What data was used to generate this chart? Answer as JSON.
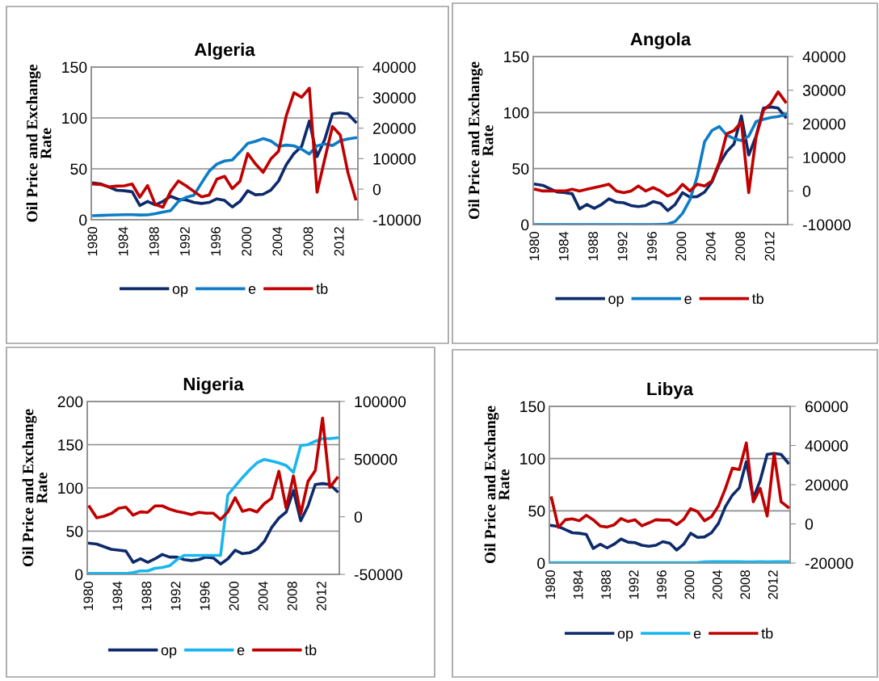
{
  "chart_data": [
    {
      "type": "line",
      "title": "Algeria",
      "ylabel": "Oil Price and Exchange Rate",
      "categories": [
        "1980",
        null,
        null,
        null,
        "1984",
        null,
        null,
        null,
        "1988",
        null,
        null,
        null,
        "1992",
        null,
        null,
        null,
        "1996",
        null,
        null,
        null,
        "2000",
        null,
        null,
        null,
        "2004",
        null,
        null,
        null,
        "2008",
        null,
        null,
        null,
        "2012",
        null,
        null
      ],
      "series": [
        {
          "name": "op",
          "color": "#0d2a6b",
          "values": [
            36,
            35,
            32,
            29,
            28.5,
            27.5,
            14,
            18,
            14.5,
            18,
            23,
            20,
            19.5,
            17,
            16,
            17,
            20.5,
            19,
            12.5,
            18,
            28.5,
            24.5,
            25,
            29,
            38,
            54,
            65,
            72,
            97,
            62,
            79,
            104,
            105,
            104,
            96
          ]
        },
        {
          "name": "e",
          "color": "#0e7cc6",
          "values": [
            4,
            4.3,
            4.6,
            4.8,
            5,
            5,
            4.7,
            4.8,
            6,
            7.6,
            9,
            18,
            22,
            24,
            36,
            47.7,
            54.7,
            57.7,
            58.7,
            66.6,
            75,
            77,
            79.7,
            77.4,
            72,
            73.3,
            72.6,
            69.3,
            64.6,
            72.6,
            74.4,
            72.9,
            77.5,
            79.4,
            80.6
          ]
        },
        {
          "name": "tb",
          "color": "#c00000",
          "axis": "y2",
          "values": [
            1700,
            1500,
            800,
            1000,
            1100,
            1700,
            -2600,
            1200,
            -5000,
            -5900,
            -700,
            2700,
            1100,
            -700,
            -2500,
            -1900,
            3300,
            4200,
            200,
            2600,
            11700,
            8300,
            5500,
            9900,
            12400,
            24000,
            31600,
            30100,
            33100,
            -1000,
            9900,
            20500,
            17800,
            5500,
            -3200
          ]
        }
      ],
      "ylim": [
        0,
        150
      ],
      "yticks": [
        0,
        50,
        100,
        150
      ],
      "y2lim": [
        -10000,
        40000
      ],
      "y2ticks": [
        -10000,
        0,
        10000,
        20000,
        30000,
        40000
      ],
      "grid": "y",
      "legend": "bottom"
    },
    {
      "type": "line",
      "title": "Angola",
      "ylabel": "Oil Price and Exchange Rate",
      "categories": [
        "1980",
        null,
        null,
        null,
        "1984",
        null,
        null,
        null,
        "1988",
        null,
        null,
        null,
        "1992",
        null,
        null,
        null,
        "1996",
        null,
        null,
        null,
        "2000",
        null,
        null,
        null,
        "2004",
        null,
        null,
        null,
        "2008",
        null,
        null,
        null,
        "2012",
        null,
        null
      ],
      "series": [
        {
          "name": "op",
          "color": "#0d2a6b",
          "values": [
            36,
            35,
            32,
            29,
            28.5,
            27.5,
            14,
            18,
            14.5,
            18,
            23,
            20,
            19.5,
            17,
            16,
            17,
            20.5,
            19,
            12.5,
            18,
            28.5,
            24.5,
            25,
            29,
            38,
            54,
            65,
            72,
            97,
            62,
            79,
            104,
            105,
            104,
            96
          ]
        },
        {
          "name": "e",
          "color": "#0e7cc6",
          "values": [
            0,
            0,
            0,
            0,
            0,
            0,
            0,
            0,
            0,
            0,
            0,
            0,
            0,
            0,
            0,
            0,
            0,
            0.2,
            0.5,
            2.8,
            10,
            22,
            43,
            74,
            84,
            87.5,
            80,
            76.7,
            75,
            79,
            91.9,
            93.9,
            95.5,
            96.5,
            98.3
          ]
        },
        {
          "name": "tb",
          "color": "#c00000",
          "axis": "y2",
          "values": [
            500,
            0,
            0,
            0,
            0,
            500,
            0,
            500,
            1000,
            1500,
            2000,
            0,
            -500,
            0,
            1500,
            0,
            1000,
            0,
            -1500,
            -500,
            2000,
            0,
            2000,
            1500,
            3000,
            8500,
            17000,
            18000,
            20500,
            -500,
            16000,
            24000,
            26000,
            29500,
            26500
          ]
        }
      ],
      "ylim": [
        0,
        150
      ],
      "yticks": [
        0,
        50,
        100,
        150
      ],
      "y2lim": [
        -10000,
        40000
      ],
      "y2ticks": [
        -10000,
        0,
        10000,
        20000,
        30000,
        40000
      ],
      "grid": "y",
      "legend": "bottom"
    },
    {
      "type": "line",
      "title": "Nigeria",
      "ylabel": "Oil Price and Exchange Rate",
      "categories": [
        "1980",
        null,
        null,
        null,
        "1984",
        null,
        null,
        null,
        "1988",
        null,
        null,
        null,
        "1992",
        null,
        null,
        null,
        "1996",
        null,
        null,
        null,
        "2000",
        null,
        null,
        null,
        "2004",
        null,
        null,
        null,
        "2008",
        null,
        null,
        null,
        "2012",
        null,
        null
      ],
      "series": [
        {
          "name": "op",
          "color": "#0d2a6b",
          "values": [
            36,
            35,
            32,
            29,
            28,
            27,
            14,
            18,
            14,
            18,
            23,
            20,
            20,
            17,
            16,
            17,
            20,
            19,
            12,
            18,
            28,
            24,
            25,
            29,
            38,
            54,
            65,
            72,
            97,
            62,
            79,
            104,
            105,
            104,
            96
          ]
        },
        {
          "name": "e",
          "color": "#19b6ee",
          "values": [
            1,
            1,
            1,
            1,
            1,
            1,
            2,
            4,
            4,
            7,
            8,
            10,
            17,
            22,
            22,
            22,
            22,
            22,
            22,
            92,
            102,
            112,
            121,
            129,
            133,
            131,
            129,
            126,
            118,
            149,
            150,
            154,
            157,
            157,
            158
          ]
        },
        {
          "name": "tb",
          "color": "#c00000",
          "axis": "y2",
          "values": [
            8700,
            -900,
            500,
            2800,
            7300,
            8300,
            1400,
            4200,
            3800,
            9400,
            9400,
            6600,
            4700,
            3500,
            1900,
            3800,
            3100,
            3100,
            -2400,
            4200,
            16500,
            4700,
            6400,
            4200,
            11300,
            16000,
            39400,
            7500,
            35400,
            2400,
            30700,
            40100,
            85600,
            25500,
            33700
          ]
        }
      ],
      "ylim": [
        0,
        200
      ],
      "yticks": [
        0,
        50,
        100,
        150,
        200
      ],
      "y2lim": [
        -50000,
        100000
      ],
      "y2ticks": [
        -50000,
        0,
        50000,
        100000
      ],
      "grid": "y",
      "legend": "bottom"
    },
    {
      "type": "line",
      "title": "Libya",
      "ylabel": "Oil Price and Exchange Rate",
      "categories": [
        "1980",
        null,
        null,
        null,
        "1984",
        null,
        null,
        null,
        "1988",
        null,
        null,
        null,
        "1992",
        null,
        null,
        null,
        "1996",
        null,
        null,
        null,
        "2000",
        null,
        null,
        null,
        "2004",
        null,
        null,
        null,
        "2008",
        null,
        null,
        null,
        "2012",
        null,
        null
      ],
      "series": [
        {
          "name": "op",
          "color": "#0d2a6b",
          "values": [
            36,
            35,
            32,
            29,
            28.5,
            27.5,
            14,
            18,
            14.5,
            18,
            23,
            20,
            19.5,
            17,
            16,
            17,
            20.5,
            19,
            12.5,
            18,
            28.5,
            24.5,
            25,
            29,
            38,
            54,
            65,
            72,
            97,
            62,
            79,
            104,
            105,
            104,
            96
          ]
        },
        {
          "name": "e",
          "color": "#19b6ee",
          "values": [
            0.3,
            0.3,
            0.3,
            0.3,
            0.3,
            0.3,
            0.3,
            0.3,
            0.3,
            0.3,
            0.3,
            0.3,
            0.3,
            0.3,
            0.3,
            0.3,
            0.3,
            0.3,
            0.3,
            0.3,
            0.3,
            0.6,
            1.2,
            1.3,
            1.3,
            1.3,
            1.3,
            1.3,
            1.2,
            1.2,
            1.3,
            1.2,
            1.3,
            1.3,
            1.3
          ]
        },
        {
          "name": "tb",
          "color": "#c00000",
          "axis": "y2",
          "values": [
            13300,
            -1800,
            2100,
            2600,
            1600,
            4400,
            2100,
            -1100,
            -1600,
            -500,
            2700,
            1200,
            2100,
            -1000,
            500,
            2100,
            1900,
            1900,
            -400,
            2300,
            7800,
            6200,
            1600,
            3700,
            9200,
            18100,
            28400,
            27700,
            41300,
            11300,
            18100,
            4000,
            35900,
            11300,
            8500
          ]
        }
      ],
      "ylim": [
        0,
        150
      ],
      "yticks": [
        0,
        50,
        100,
        150
      ],
      "y2lim": [
        -20000,
        60000
      ],
      "y2ticks": [
        -20000,
        0,
        20000,
        40000,
        60000
      ],
      "grid": "y",
      "legend": "bottom"
    }
  ]
}
